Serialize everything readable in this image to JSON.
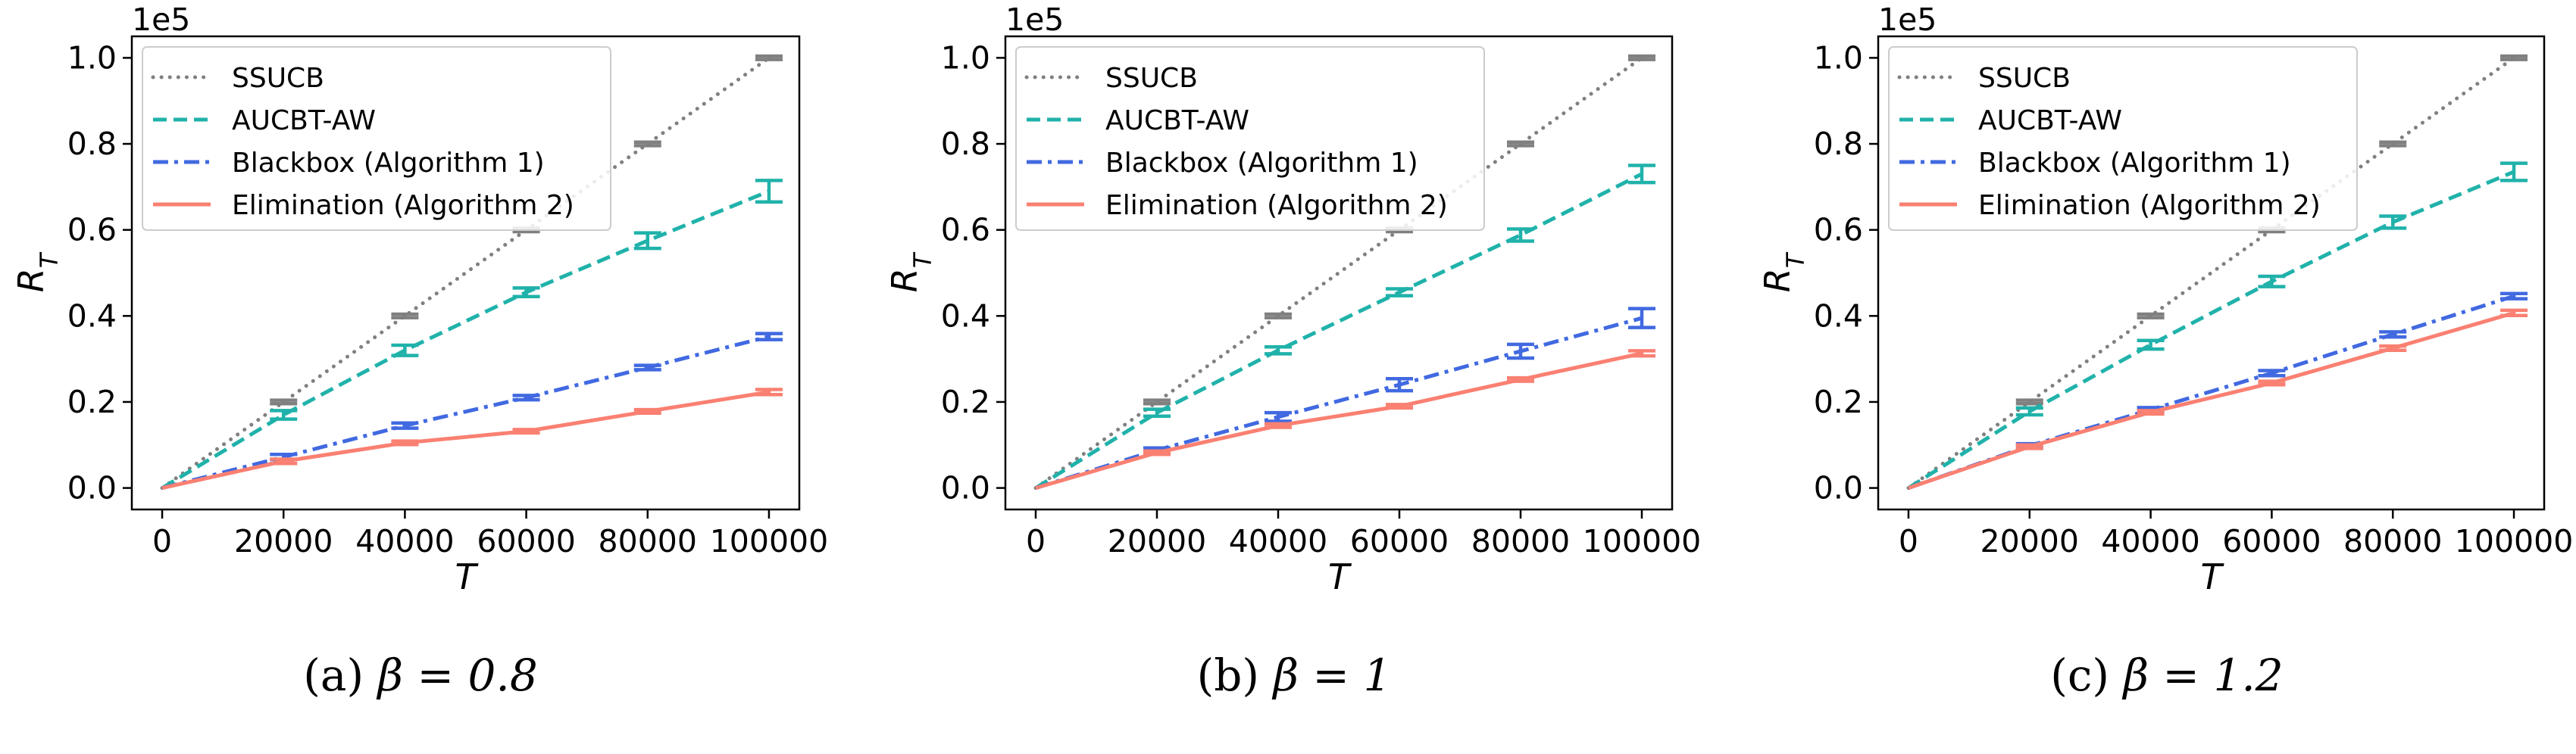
{
  "figure": {
    "legend_placement": "upper-left",
    "y_multiplier_label": "1e5"
  },
  "chart_data": [
    {
      "type": "line",
      "caption": "(a) β = 0.8",
      "caption_prefix": "(a)",
      "caption_math": "β = 0.8",
      "xlabel": "T",
      "ylabel": "R_T",
      "x_ticks": [
        "0",
        "20000",
        "40000",
        "60000",
        "80000",
        "100000"
      ],
      "y_ticks": [
        "0.0",
        "0.2",
        "0.4",
        "0.6",
        "0.8",
        "1.0"
      ],
      "y_tick_values": [
        0,
        0.2,
        0.4,
        0.6,
        0.8,
        1.0
      ],
      "x_tick_values": [
        0,
        20000,
        40000,
        60000,
        80000,
        100000
      ],
      "xlim": [
        -5000,
        105000
      ],
      "ylim": [
        -0.05,
        1.05
      ],
      "grid": false,
      "x": [
        0,
        20000,
        40000,
        60000,
        80000,
        100000
      ],
      "series": [
        {
          "name": "SSUCB",
          "color": "#808080",
          "style": "dotted",
          "values": [
            0,
            0.2,
            0.4,
            0.6,
            0.8,
            1.0
          ],
          "err": [
            0,
            0.004,
            0.004,
            0.004,
            0.004,
            0.004
          ]
        },
        {
          "name": "AUCBT-AW",
          "color": "#20b2aa",
          "style": "dashed",
          "values": [
            0,
            0.17,
            0.32,
            0.455,
            0.575,
            0.69
          ],
          "err": [
            0,
            0.01,
            0.012,
            0.01,
            0.018,
            0.025
          ]
        },
        {
          "name": "Blackbox (Algorithm 1)",
          "color": "#4169e1",
          "style": "dashdot",
          "values": [
            0,
            0.072,
            0.145,
            0.21,
            0.28,
            0.352
          ],
          "err": [
            0,
            0.006,
            0.006,
            0.005,
            0.005,
            0.007
          ]
        },
        {
          "name": "Elimination (Algorithm 2)",
          "color": "#fa8072",
          "style": "solid",
          "values": [
            0,
            0.062,
            0.105,
            0.132,
            0.178,
            0.223
          ],
          "err": [
            0,
            0.005,
            0.004,
            0.004,
            0.004,
            0.006
          ]
        }
      ]
    },
    {
      "type": "line",
      "caption": "(b) β = 1",
      "caption_prefix": "(b)",
      "caption_math": "β = 1",
      "xlabel": "T",
      "ylabel": "R_T",
      "x_ticks": [
        "0",
        "20000",
        "40000",
        "60000",
        "80000",
        "100000"
      ],
      "y_ticks": [
        "0.0",
        "0.2",
        "0.4",
        "0.6",
        "0.8",
        "1.0"
      ],
      "y_tick_values": [
        0,
        0.2,
        0.4,
        0.6,
        0.8,
        1.0
      ],
      "x_tick_values": [
        0,
        20000,
        40000,
        60000,
        80000,
        100000
      ],
      "xlim": [
        -5000,
        105000
      ],
      "ylim": [
        -0.05,
        1.05
      ],
      "grid": false,
      "x": [
        0,
        20000,
        40000,
        60000,
        80000,
        100000
      ],
      "series": [
        {
          "name": "SSUCB",
          "color": "#808080",
          "style": "dotted",
          "values": [
            0,
            0.2,
            0.4,
            0.6,
            0.8,
            1.0
          ],
          "err": [
            0,
            0.004,
            0.004,
            0.004,
            0.004,
            0.004
          ]
        },
        {
          "name": "AUCBT-AW",
          "color": "#20b2aa",
          "style": "dashed",
          "values": [
            0,
            0.175,
            0.32,
            0.455,
            0.588,
            0.73
          ],
          "err": [
            0,
            0.008,
            0.008,
            0.008,
            0.014,
            0.02
          ]
        },
        {
          "name": "Blackbox (Algorithm 1)",
          "color": "#4169e1",
          "style": "dashdot",
          "values": [
            0,
            0.088,
            0.165,
            0.24,
            0.318,
            0.395
          ],
          "err": [
            0,
            0.005,
            0.01,
            0.014,
            0.016,
            0.022
          ]
        },
        {
          "name": "Elimination (Algorithm 2)",
          "color": "#fa8072",
          "style": "solid",
          "values": [
            0,
            0.082,
            0.145,
            0.19,
            0.252,
            0.313
          ],
          "err": [
            0,
            0.004,
            0.004,
            0.004,
            0.004,
            0.006
          ]
        }
      ]
    },
    {
      "type": "line",
      "caption": "(c) β = 1.2",
      "caption_prefix": "(c)",
      "caption_math": "β = 1.2",
      "xlabel": "T",
      "ylabel": "R_T",
      "x_ticks": [
        "0",
        "20000",
        "40000",
        "60000",
        "80000",
        "100000"
      ],
      "y_ticks": [
        "0.0",
        "0.2",
        "0.4",
        "0.6",
        "0.8",
        "1.0"
      ],
      "y_tick_values": [
        0,
        0.2,
        0.4,
        0.6,
        0.8,
        1.0
      ],
      "x_tick_values": [
        0,
        20000,
        40000,
        60000,
        80000,
        100000
      ],
      "xlim": [
        -5000,
        105000
      ],
      "ylim": [
        -0.05,
        1.05
      ],
      "grid": false,
      "x": [
        0,
        20000,
        40000,
        60000,
        80000,
        100000
      ],
      "series": [
        {
          "name": "SSUCB",
          "color": "#808080",
          "style": "dotted",
          "values": [
            0,
            0.2,
            0.4,
            0.6,
            0.8,
            1.0
          ],
          "err": [
            0,
            0.004,
            0.004,
            0.004,
            0.004,
            0.004
          ]
        },
        {
          "name": "AUCBT-AW",
          "color": "#20b2aa",
          "style": "dashed",
          "values": [
            0,
            0.178,
            0.333,
            0.48,
            0.618,
            0.735
          ],
          "err": [
            0,
            0.008,
            0.01,
            0.012,
            0.014,
            0.02
          ]
        },
        {
          "name": "Blackbox (Algorithm 1)",
          "color": "#4169e1",
          "style": "dashdot",
          "values": [
            0,
            0.098,
            0.182,
            0.267,
            0.357,
            0.446
          ],
          "err": [
            0,
            0.005,
            0.005,
            0.006,
            0.006,
            0.006
          ]
        },
        {
          "name": "Elimination (Algorithm 2)",
          "color": "#fa8072",
          "style": "solid",
          "values": [
            0,
            0.096,
            0.176,
            0.244,
            0.325,
            0.407
          ],
          "err": [
            0,
            0.004,
            0.004,
            0.004,
            0.005,
            0.006
          ]
        }
      ]
    }
  ]
}
